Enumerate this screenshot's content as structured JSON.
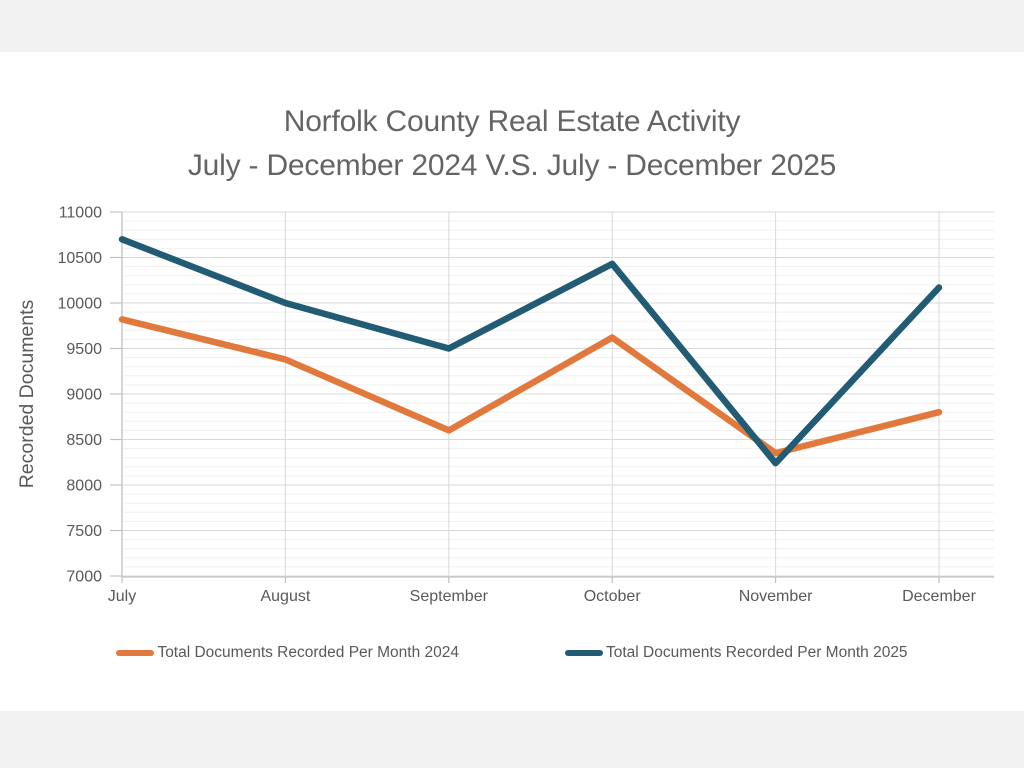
{
  "page": {
    "background": "#f2f2f2",
    "canvas_background": "#ffffff"
  },
  "chart": {
    "title_line1": "Norfolk County Real Estate Activity",
    "title_line2": "July - December 2024 V.S. July - December 2025"
  },
  "chart_data": {
    "type": "line",
    "title": "Norfolk County Real Estate Activity July - December 2024 V.S. July - December 2025",
    "categories": [
      "July",
      "August",
      "September",
      "October",
      "November",
      "December"
    ],
    "series": [
      {
        "name": "Total Documents Recorded Per Month 2024",
        "color": "#E1793D",
        "values": [
          9820,
          9380,
          8600,
          9620,
          8350,
          8800
        ]
      },
      {
        "name": "Total Documents Recorded Per Month 2025",
        "color": "#215C74",
        "values": [
          10700,
          10000,
          9500,
          10430,
          8240,
          10170
        ]
      }
    ],
    "xlabel": "",
    "ylabel": "Recorded Documents",
    "ylim": [
      7000,
      11000
    ],
    "ytick_step": 500,
    "ytick_minor_step": 100,
    "yticks": [
      7000,
      7500,
      8000,
      8500,
      9000,
      9500,
      10000,
      10500,
      11000
    ],
    "grid": true,
    "legend_position": "bottom",
    "colors": {
      "major_grid": "#d9d9d9",
      "minor_grid": "#f0f0f0",
      "axis": "#c0c0c0",
      "tick_text": "#595959",
      "title_text": "#646464"
    }
  }
}
